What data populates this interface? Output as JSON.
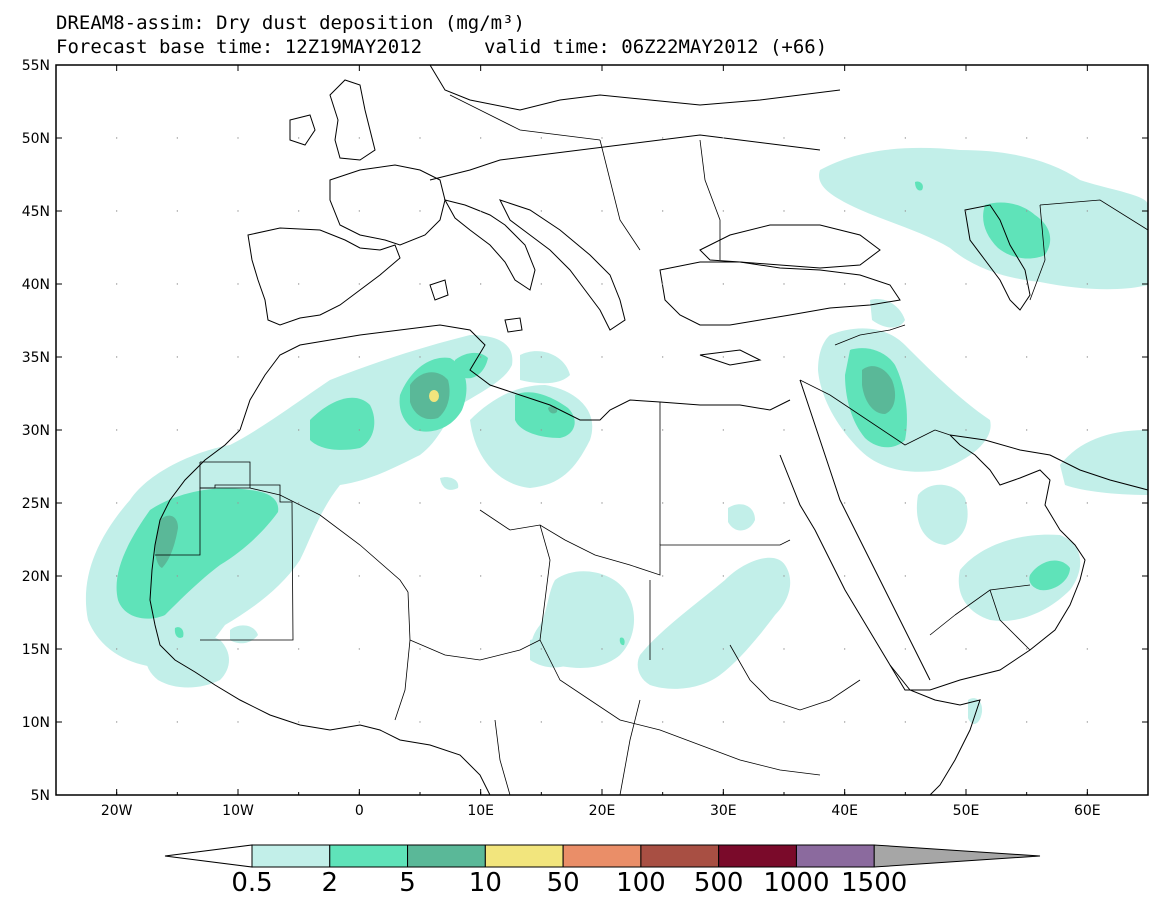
{
  "title": {
    "line1": "DREAM8-assim: Dry dust deposition (mg/m³)",
    "base_time": "Forecast base time: 12Z19MAY2012",
    "valid_time": "valid time: 06Z22MAY2012 (+66)"
  },
  "axes": {
    "lat_labels": [
      "55N",
      "50N",
      "45N",
      "40N",
      "35N",
      "30N",
      "25N",
      "20N",
      "15N",
      "10N",
      "5N"
    ],
    "lon_labels": [
      "20W",
      "10W",
      "0",
      "10E",
      "20E",
      "30E",
      "40E",
      "50E",
      "60E"
    ],
    "lat_range": [
      5,
      55
    ],
    "lon_range": [
      -25,
      65
    ]
  },
  "colorbar": {
    "labels": [
      "0.5",
      "2",
      "5",
      "10",
      "50",
      "100",
      "500",
      "1000",
      "1500"
    ],
    "colors": [
      "#c2efe9",
      "#5fe3b9",
      "#5ab898",
      "#f2e57d",
      "#ea8e68",
      "#a84f43",
      "#7a0a2a",
      "#8b6a9e",
      "#a6a6a6"
    ]
  },
  "colors": {
    "land_border": "#000000",
    "level1": "#c2efe9",
    "level2": "#5fe3b9",
    "level3": "#5ab898",
    "level4": "#f2e57d"
  }
}
